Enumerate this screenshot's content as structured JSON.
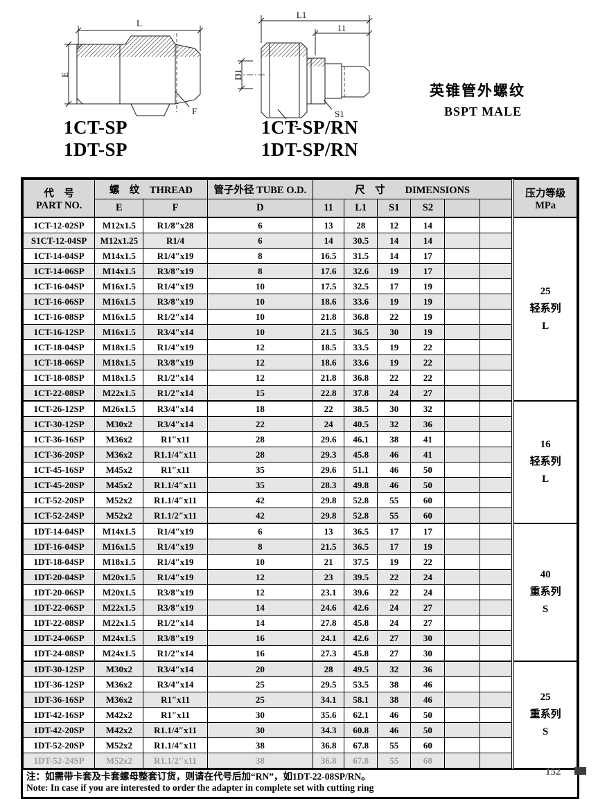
{
  "page": {
    "footer_page": "152"
  },
  "drawings": {
    "heading_cn": "英锥管外螺纹",
    "heading_en": "BSPT MALE",
    "left": {
      "label_l": "L",
      "label_e": "E",
      "label_f": "F",
      "captions": [
        "1CT-SP",
        "1DT-SP"
      ]
    },
    "right": {
      "label_l1": "L1",
      "label_l1_short": "11",
      "label_d1": "D1",
      "label_s2": "S2",
      "label_s1": "S1",
      "captions": [
        "1CT-SP/RN",
        "1DT-SP/RN"
      ]
    }
  },
  "table": {
    "header": {
      "part_no_cn": "代　号",
      "part_no_en": "PART NO.",
      "thread": "螺　纹　THREAD",
      "thread_sub": [
        "E",
        "F"
      ],
      "tube_od": "管子外径 TUBE O.D.",
      "tube_od_sub": "D",
      "dimensions": "尺　寸　　DIMENSIONS",
      "dims_sub": [
        "11",
        "L1",
        "S1",
        "S2",
        "",
        ""
      ],
      "pressure_cn": "压力等级",
      "pressure_en": "MPa"
    },
    "col_names": [
      "cell-part-no",
      "cell-thread-e",
      "cell-thread-f",
      "cell-tube-od",
      "cell-dim-11",
      "cell-dim-l1",
      "cell-dim-s1",
      "cell-dim-s2",
      "cell-empty-1",
      "cell-empty-2"
    ],
    "rows": [
      [
        "1CT-12-02SP",
        "M12x1.5",
        "R1/8″x28",
        "6",
        "13",
        "28",
        "12",
        "14"
      ],
      [
        "S1CT-12-04SP",
        "M12x1.25",
        "R1/4",
        "6",
        "14",
        "30.5",
        "14",
        "14"
      ],
      [
        "1CT-14-04SP",
        "M14x1.5",
        "R1/4″x19",
        "8",
        "16.5",
        "31.5",
        "14",
        "17"
      ],
      [
        "1CT-14-06SP",
        "M14x1.5",
        "R3/8″x19",
        "8",
        "17.6",
        "32.6",
        "19",
        "17"
      ],
      [
        "1CT-16-04SP",
        "M16x1.5",
        "R1/4″x19",
        "10",
        "17.5",
        "32.5",
        "17",
        "19"
      ],
      [
        "1CT-16-06SP",
        "M16x1.5",
        "R3/8″x19",
        "10",
        "18.6",
        "33.6",
        "19",
        "19"
      ],
      [
        "1CT-16-08SP",
        "M16x1.5",
        "R1/2″x14",
        "10",
        "21.8",
        "36.8",
        "22",
        "19"
      ],
      [
        "1CT-16-12SP",
        "M16x1.5",
        "R3/4″x14",
        "10",
        "21.5",
        "36.5",
        "30",
        "19"
      ],
      [
        "1CT-18-04SP",
        "M18x1.5",
        "R1/4″x19",
        "12",
        "18.5",
        "33.5",
        "19",
        "22"
      ],
      [
        "1CT-18-06SP",
        "M18x1.5",
        "R3/8″x19",
        "12",
        "18.6",
        "33.6",
        "19",
        "22"
      ],
      [
        "1CT-18-08SP",
        "M18x1.5",
        "R1/2″x14",
        "12",
        "21.8",
        "36.8",
        "22",
        "22"
      ],
      [
        "1CT-22-08SP",
        "M22x1.5",
        "R1/2″x14",
        "15",
        "22.8",
        "37.8",
        "24",
        "27"
      ],
      [
        "1CT-26-12SP",
        "M26x1.5",
        "R3/4″x14",
        "18",
        "22",
        "38.5",
        "30",
        "32"
      ],
      [
        "1CT-30-12SP",
        "M30x2",
        "R3/4″x14",
        "22",
        "24",
        "40.5",
        "32",
        "36"
      ],
      [
        "1CT-36-16SP",
        "M36x2",
        "R1″x11",
        "28",
        "29.6",
        "46.1",
        "38",
        "41"
      ],
      [
        "1CT-36-20SP",
        "M36x2",
        "R1.1/4″x11",
        "28",
        "29.3",
        "45.8",
        "46",
        "41"
      ],
      [
        "1CT-45-16SP",
        "M45x2",
        "R1″x11",
        "35",
        "29.6",
        "51.1",
        "46",
        "50"
      ],
      [
        "1CT-45-20SP",
        "M45x2",
        "R1.1/4″x11",
        "35",
        "28.3",
        "49.8",
        "46",
        "50"
      ],
      [
        "1CT-52-20SP",
        "M52x2",
        "R1.1/4″x11",
        "42",
        "29.8",
        "52.8",
        "55",
        "60"
      ],
      [
        "1CT-52-24SP",
        "M52x2",
        "R1.1/2″x11",
        "42",
        "29.8",
        "52.8",
        "55",
        "60"
      ],
      [
        "1DT-14-04SP",
        "M14x1.5",
        "R1/4″x19",
        "6",
        "13",
        "36.5",
        "17",
        "17"
      ],
      [
        "1DT-16-04SP",
        "M16x1.5",
        "R1/4″x19",
        "8",
        "21.5",
        "36.5",
        "17",
        "19"
      ],
      [
        "1DT-18-04SP",
        "M18x1.5",
        "R1/4″x19",
        "10",
        "21",
        "37.5",
        "19",
        "22"
      ],
      [
        "1DT-20-04SP",
        "M20x1.5",
        "R1/4″x19",
        "12",
        "23",
        "39.5",
        "22",
        "24"
      ],
      [
        "1DT-20-06SP",
        "M20x1.5",
        "R3/8″x19",
        "12",
        "23.1",
        "39.6",
        "22",
        "24"
      ],
      [
        "1DT-22-06SP",
        "M22x1.5",
        "R3/8″x19",
        "14",
        "24.6",
        "42.6",
        "24",
        "27"
      ],
      [
        "1DT-22-08SP",
        "M22x1.5",
        "R1/2″x14",
        "14",
        "27.8",
        "45.8",
        "24",
        "27"
      ],
      [
        "1DT-24-06SP",
        "M24x1.5",
        "R3/8″x19",
        "16",
        "24.1",
        "42.6",
        "27",
        "30"
      ],
      [
        "1DT-24-08SP",
        "M24x1.5",
        "R1/2″x14",
        "16",
        "27.3",
        "45.8",
        "27",
        "30"
      ],
      [
        "1DT-30-12SP",
        "M30x2",
        "R3/4″x14",
        "20",
        "28",
        "49.5",
        "32",
        "36"
      ],
      [
        "1DT-36-12SP",
        "M36x2",
        "R3/4″x14",
        "25",
        "29.5",
        "53.5",
        "38",
        "46"
      ],
      [
        "1DT-36-16SP",
        "M36x2",
        "R1″x11",
        "25",
        "34.1",
        "58.1",
        "38",
        "46"
      ],
      [
        "1DT-42-16SP",
        "M42x2",
        "R1″x11",
        "30",
        "35.6",
        "62.1",
        "46",
        "50"
      ],
      [
        "1DT-42-20SP",
        "M42x2",
        "R1.1/4″x11",
        "30",
        "34.3",
        "60.8",
        "46",
        "50"
      ],
      [
        "1DT-52-20SP",
        "M52x2",
        "R1.1/4″x11",
        "38",
        "36.8",
        "67.8",
        "55",
        "60"
      ],
      [
        "1DT-52-24SP",
        "M52x2",
        "R1.1/2″x11",
        "38",
        "36.8",
        "67.8",
        "55",
        "60"
      ]
    ],
    "groups": [
      {
        "start": 0,
        "count": 12,
        "lines": [
          "25",
          "轻系列",
          "L"
        ]
      },
      {
        "start": 12,
        "count": 8,
        "lines": [
          "16",
          "轻系列",
          "L"
        ]
      },
      {
        "start": 20,
        "count": 9,
        "lines": [
          "40",
          "重系列",
          "S"
        ]
      },
      {
        "start": 29,
        "count": 7,
        "lines": [
          "25",
          "重系列",
          "S"
        ]
      }
    ],
    "faded_row_index": 35
  },
  "notes": {
    "cn": "注：如需带卡套及卡套螺母整套订货，则请在代号后加“RN”，如1DT-22-08SP/RN。",
    "en": "Note: In case if you are interested to order the adapter in complete set with cutting ring"
  }
}
